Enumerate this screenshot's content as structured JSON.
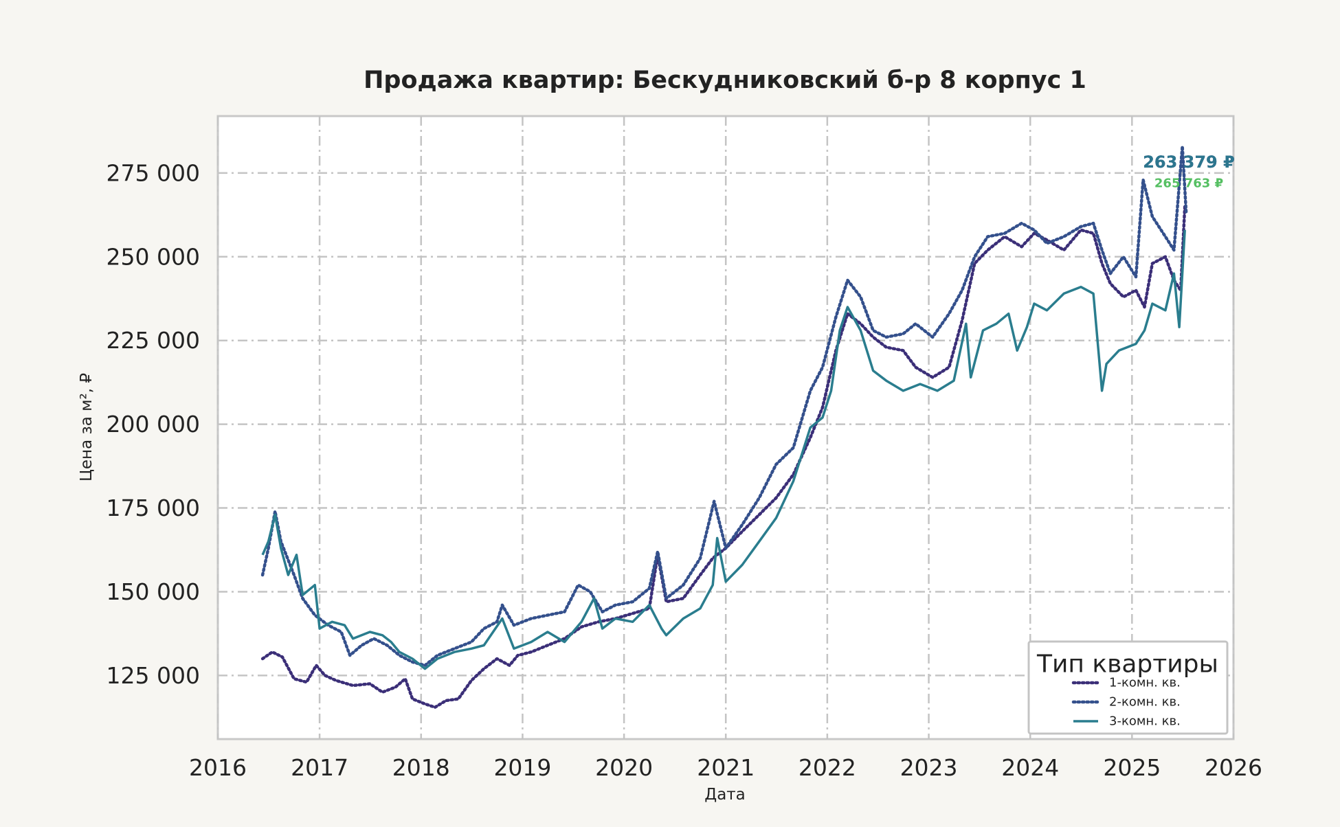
{
  "chart_data": {
    "type": "line",
    "title": "Продажа квартир: Бескудниковский б-р 8 корпус 1",
    "xlabel": "Дата",
    "ylabel": "Цена за м², ₽",
    "xlim": [
      "2016-01-01",
      "2026-01-01"
    ],
    "ylim": [
      106000,
      292000
    ],
    "x_ticks": [
      "2016",
      "2017",
      "2018",
      "2019",
      "2020",
      "2021",
      "2022",
      "2023",
      "2024",
      "2025",
      "2026"
    ],
    "y_ticks": [
      {
        "value": 125000,
        "label": "125 000"
      },
      {
        "value": 150000,
        "label": "150 000"
      },
      {
        "value": 175000,
        "label": "175 000"
      },
      {
        "value": 200000,
        "label": "200 000"
      },
      {
        "value": 225000,
        "label": "225 000"
      },
      {
        "value": 250000,
        "label": "250 000"
      },
      {
        "value": 275000,
        "label": "275 000"
      }
    ],
    "grid": true,
    "legend": {
      "title": "Тип квартиры",
      "position": "bottom-right"
    },
    "colors": {
      "1-комн. кв.": "#3b2f78",
      "2-комн. кв.": "#34508c",
      "3-комн. кв.": "#2a7d8e",
      "annotation_small": "#55bf62"
    },
    "series": [
      {
        "name": "1-комн. кв.",
        "style": "dotted",
        "points": [
          [
            "2016-06-10",
            130000
          ],
          [
            "2016-07-15",
            132000
          ],
          [
            "2016-08-20",
            130500
          ],
          [
            "2016-10-01",
            124000
          ],
          [
            "2016-11-15",
            123000
          ],
          [
            "2016-12-20",
            128000
          ],
          [
            "2017-01-20",
            125000
          ],
          [
            "2017-03-01",
            123500
          ],
          [
            "2017-05-01",
            122000
          ],
          [
            "2017-07-01",
            122500
          ],
          [
            "2017-08-15",
            120000
          ],
          [
            "2017-10-01",
            121500
          ],
          [
            "2017-11-05",
            124000
          ],
          [
            "2017-12-01",
            118000
          ],
          [
            "2018-01-15",
            116500
          ],
          [
            "2018-02-20",
            115500
          ],
          [
            "2018-04-01",
            117500
          ],
          [
            "2018-05-15",
            118000
          ],
          [
            "2018-07-01",
            123500
          ],
          [
            "2018-08-15",
            127000
          ],
          [
            "2018-10-01",
            130000
          ],
          [
            "2018-11-15",
            128000
          ],
          [
            "2018-12-15",
            131000
          ],
          [
            "2019-02-01",
            132000
          ],
          [
            "2019-04-01",
            134000
          ],
          [
            "2019-06-01",
            136000
          ],
          [
            "2019-08-01",
            139500
          ],
          [
            "2019-10-01",
            141000
          ],
          [
            "2019-12-01",
            142000
          ],
          [
            "2020-02-01",
            143500
          ],
          [
            "2020-04-01",
            145000
          ],
          [
            "2020-05-01",
            161000
          ],
          [
            "2020-06-01",
            147000
          ],
          [
            "2020-08-01",
            148000
          ],
          [
            "2020-10-01",
            155000
          ],
          [
            "2020-11-15",
            160000
          ],
          [
            "2021-01-01",
            163000
          ],
          [
            "2021-03-01",
            168000
          ],
          [
            "2021-05-01",
            173000
          ],
          [
            "2021-07-01",
            178000
          ],
          [
            "2021-09-01",
            185000
          ],
          [
            "2021-11-01",
            196000
          ],
          [
            "2021-12-15",
            205000
          ],
          [
            "2022-02-01",
            222000
          ],
          [
            "2022-03-15",
            233000
          ],
          [
            "2022-05-01",
            230000
          ],
          [
            "2022-06-15",
            226000
          ],
          [
            "2022-08-01",
            223000
          ],
          [
            "2022-10-01",
            222000
          ],
          [
            "2022-11-15",
            217000
          ],
          [
            "2023-01-15",
            214000
          ],
          [
            "2023-03-15",
            217000
          ],
          [
            "2023-05-01",
            231000
          ],
          [
            "2023-06-15",
            248000
          ],
          [
            "2023-08-01",
            252000
          ],
          [
            "2023-10-01",
            256000
          ],
          [
            "2023-12-01",
            253000
          ],
          [
            "2024-01-15",
            257000
          ],
          [
            "2024-03-01",
            255000
          ],
          [
            "2024-05-01",
            252000
          ],
          [
            "2024-07-01",
            258000
          ],
          [
            "2024-08-15",
            257000
          ],
          [
            "2024-09-15",
            248000
          ],
          [
            "2024-10-15",
            242000
          ],
          [
            "2024-12-01",
            238000
          ],
          [
            "2025-01-15",
            240000
          ],
          [
            "2025-02-15",
            235000
          ],
          [
            "2025-03-15",
            248000
          ],
          [
            "2025-05-01",
            250000
          ],
          [
            "2025-06-01",
            243000
          ],
          [
            "2025-06-25",
            240000
          ],
          [
            "2025-07-10",
            265000
          ]
        ]
      },
      {
        "name": "2-комн. кв.",
        "style": "dotted",
        "points": [
          [
            "2016-06-10",
            155000
          ],
          [
            "2016-07-01",
            163000
          ],
          [
            "2016-07-25",
            174000
          ],
          [
            "2016-08-15",
            165000
          ],
          [
            "2016-10-01",
            155000
          ],
          [
            "2016-11-01",
            148000
          ],
          [
            "2016-12-15",
            143000
          ],
          [
            "2017-02-01",
            140000
          ],
          [
            "2017-03-20",
            138000
          ],
          [
            "2017-04-20",
            131000
          ],
          [
            "2017-06-01",
            134000
          ],
          [
            "2017-07-15",
            136000
          ],
          [
            "2017-09-01",
            134000
          ],
          [
            "2017-10-15",
            131000
          ],
          [
            "2017-12-01",
            129000
          ],
          [
            "2018-01-15",
            128000
          ],
          [
            "2018-03-01",
            131000
          ],
          [
            "2018-05-01",
            133000
          ],
          [
            "2018-07-01",
            135000
          ],
          [
            "2018-08-15",
            139000
          ],
          [
            "2018-10-01",
            141000
          ],
          [
            "2018-10-20",
            146000
          ],
          [
            "2018-12-01",
            140000
          ],
          [
            "2019-02-01",
            142000
          ],
          [
            "2019-04-01",
            143000
          ],
          [
            "2019-06-01",
            144000
          ],
          [
            "2019-07-20",
            152000
          ],
          [
            "2019-09-01",
            150000
          ],
          [
            "2019-10-15",
            144000
          ],
          [
            "2019-12-01",
            146000
          ],
          [
            "2020-02-01",
            147000
          ],
          [
            "2020-04-01",
            151000
          ],
          [
            "2020-05-01",
            162000
          ],
          [
            "2020-06-01",
            148000
          ],
          [
            "2020-08-01",
            152000
          ],
          [
            "2020-10-01",
            160000
          ],
          [
            "2020-11-20",
            177000
          ],
          [
            "2021-01-01",
            163000
          ],
          [
            "2021-03-01",
            170000
          ],
          [
            "2021-05-01",
            178000
          ],
          [
            "2021-07-01",
            188000
          ],
          [
            "2021-09-01",
            193000
          ],
          [
            "2021-11-01",
            210000
          ],
          [
            "2021-12-15",
            217000
          ],
          [
            "2022-02-01",
            232000
          ],
          [
            "2022-03-15",
            243000
          ],
          [
            "2022-05-01",
            238000
          ],
          [
            "2022-06-15",
            228000
          ],
          [
            "2022-08-01",
            226000
          ],
          [
            "2022-10-01",
            227000
          ],
          [
            "2022-11-15",
            230000
          ],
          [
            "2023-01-15",
            226000
          ],
          [
            "2023-03-15",
            233000
          ],
          [
            "2023-05-01",
            240000
          ],
          [
            "2023-06-15",
            250000
          ],
          [
            "2023-08-01",
            256000
          ],
          [
            "2023-10-01",
            257000
          ],
          [
            "2023-12-01",
            260000
          ],
          [
            "2024-01-15",
            258000
          ],
          [
            "2024-03-01",
            254000
          ],
          [
            "2024-05-01",
            256000
          ],
          [
            "2024-07-01",
            259000
          ],
          [
            "2024-08-15",
            260000
          ],
          [
            "2024-09-15",
            252000
          ],
          [
            "2024-10-15",
            245000
          ],
          [
            "2024-12-01",
            250000
          ],
          [
            "2025-01-15",
            244000
          ],
          [
            "2025-02-10",
            273000
          ],
          [
            "2025-03-15",
            262000
          ],
          [
            "2025-05-01",
            256000
          ],
          [
            "2025-06-01",
            252000
          ],
          [
            "2025-07-01",
            283000
          ],
          [
            "2025-07-15",
            263000
          ]
        ]
      },
      {
        "name": "3-комн. кв.",
        "style": "solid",
        "points": [
          [
            "2016-06-10",
            161000
          ],
          [
            "2016-07-01",
            165000
          ],
          [
            "2016-07-25",
            173000
          ],
          [
            "2016-08-15",
            163000
          ],
          [
            "2016-09-10",
            155000
          ],
          [
            "2016-10-10",
            161000
          ],
          [
            "2016-11-01",
            149000
          ],
          [
            "2016-12-15",
            152000
          ],
          [
            "2017-01-01",
            139000
          ],
          [
            "2017-02-15",
            141000
          ],
          [
            "2017-04-01",
            140000
          ],
          [
            "2017-05-01",
            136000
          ],
          [
            "2017-07-01",
            138000
          ],
          [
            "2017-08-15",
            137000
          ],
          [
            "2017-09-15",
            135000
          ],
          [
            "2017-10-15",
            132000
          ],
          [
            "2017-12-01",
            130000
          ],
          [
            "2018-01-15",
            127000
          ],
          [
            "2018-03-01",
            130000
          ],
          [
            "2018-05-01",
            132000
          ],
          [
            "2018-07-01",
            133000
          ],
          [
            "2018-08-15",
            134000
          ],
          [
            "2018-10-20",
            142000
          ],
          [
            "2018-12-01",
            133000
          ],
          [
            "2019-02-01",
            135000
          ],
          [
            "2019-04-01",
            138000
          ],
          [
            "2019-06-01",
            135000
          ],
          [
            "2019-08-01",
            141000
          ],
          [
            "2019-09-15",
            148000
          ],
          [
            "2019-10-15",
            139000
          ],
          [
            "2019-12-01",
            142000
          ],
          [
            "2020-02-01",
            141000
          ],
          [
            "2020-04-01",
            146000
          ],
          [
            "2020-05-15",
            139000
          ],
          [
            "2020-06-01",
            137000
          ],
          [
            "2020-08-01",
            142000
          ],
          [
            "2020-10-01",
            145000
          ],
          [
            "2020-11-15",
            152000
          ],
          [
            "2020-12-01",
            166000
          ],
          [
            "2021-01-01",
            153000
          ],
          [
            "2021-03-01",
            158000
          ],
          [
            "2021-05-01",
            165000
          ],
          [
            "2021-07-01",
            172000
          ],
          [
            "2021-09-01",
            183000
          ],
          [
            "2021-11-01",
            199000
          ],
          [
            "2021-12-15",
            202000
          ],
          [
            "2022-01-15",
            210000
          ],
          [
            "2022-02-15",
            228000
          ],
          [
            "2022-03-15",
            235000
          ],
          [
            "2022-05-01",
            228000
          ],
          [
            "2022-06-15",
            216000
          ],
          [
            "2022-08-01",
            213000
          ],
          [
            "2022-10-01",
            210000
          ],
          [
            "2022-12-01",
            212000
          ],
          [
            "2023-02-01",
            210000
          ],
          [
            "2023-04-01",
            213000
          ],
          [
            "2023-05-15",
            230000
          ],
          [
            "2023-06-01",
            214000
          ],
          [
            "2023-07-15",
            228000
          ],
          [
            "2023-09-01",
            230000
          ],
          [
            "2023-10-15",
            233000
          ],
          [
            "2023-11-15",
            222000
          ],
          [
            "2023-12-20",
            229000
          ],
          [
            "2024-01-15",
            236000
          ],
          [
            "2024-03-01",
            234000
          ],
          [
            "2024-05-01",
            239000
          ],
          [
            "2024-07-01",
            241000
          ],
          [
            "2024-08-15",
            239000
          ],
          [
            "2024-09-15",
            210000
          ],
          [
            "2024-10-01",
            218000
          ],
          [
            "2024-11-15",
            222000
          ],
          [
            "2025-01-15",
            224000
          ],
          [
            "2025-02-15",
            228000
          ],
          [
            "2025-03-15",
            236000
          ],
          [
            "2025-05-01",
            234000
          ],
          [
            "2025-06-01",
            245000
          ],
          [
            "2025-06-20",
            229000
          ],
          [
            "2025-07-10",
            258000
          ]
        ]
      }
    ],
    "annotations": [
      {
        "text": "263 379 ₽",
        "series": "1-комн. кв."
      },
      {
        "text": "263 379 ₽",
        "series": "2-комн. кв."
      },
      {
        "text": "263 379 ₽",
        "series": "3-комн. кв."
      },
      {
        "text": "265 763 ₽",
        "series": "small"
      }
    ]
  }
}
